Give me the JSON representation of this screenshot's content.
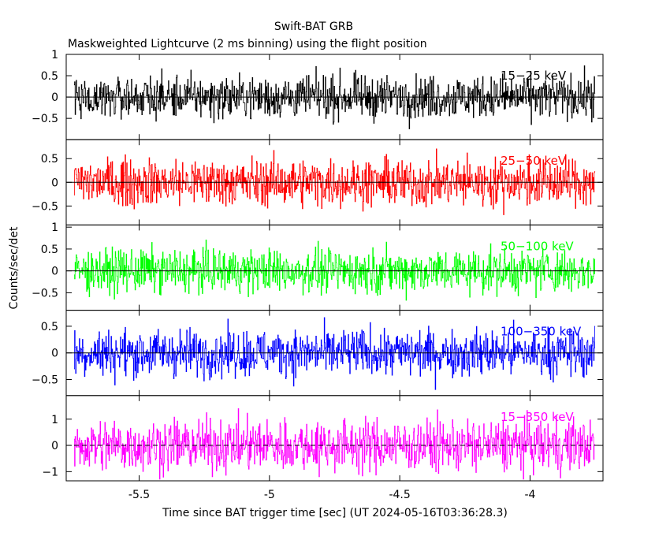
{
  "chart_data": {
    "type": "line",
    "title": "Swift-BAT GRB",
    "subtitle": "Maskweighted Lightcurve (2 ms binning) using the flight position",
    "xlabel": "Time since BAT trigger time [sec] (UT 2024-05-16T03:36:28.3)",
    "ylabel": "Counts/sec/det",
    "xlim": [
      -5.78,
      -3.72
    ],
    "data_x_range": [
      -5.75,
      -3.75
    ],
    "bin_width_s": 0.002,
    "x_ticks": [
      -5.5,
      -5,
      -4.5,
      -4
    ],
    "x_tick_labels": [
      "-5.5",
      "-5",
      "-4.5",
      "-4"
    ],
    "panels": [
      {
        "name": "15-25 keV",
        "label": "15−25 keV",
        "color": "#000000",
        "ylim": [
          -1.0,
          1.0
        ],
        "ticks": [
          -0.5,
          0,
          0.5,
          1
        ],
        "tick_labels": [
          "−0.5",
          "0",
          "0.5",
          "1"
        ],
        "amplitude": 0.85,
        "mean": 0.0
      },
      {
        "name": "25-50 keV",
        "label": "25−50 keV",
        "color": "#ff0000",
        "ylim": [
          -0.9,
          0.9
        ],
        "ticks": [
          -0.5,
          0,
          0.5
        ],
        "tick_labels": [
          "−0.5",
          "0",
          "0.5"
        ],
        "amplitude": 0.85,
        "mean": 0.0
      },
      {
        "name": "50-100 keV",
        "label": "50−100 keV",
        "color": "#00ff00",
        "ylim": [
          -0.9,
          1.05
        ],
        "ticks": [
          -0.5,
          0,
          0.5,
          1
        ],
        "tick_labels": [
          "−0.5",
          "0",
          "0.5",
          "1"
        ],
        "amplitude": 0.85,
        "mean": 0.0
      },
      {
        "name": "100-350 keV",
        "label": "100−350 keV",
        "color": "#0000ff",
        "ylim": [
          -0.8,
          0.8
        ],
        "ticks": [
          -0.5,
          0,
          0.5
        ],
        "tick_labels": [
          "−0.5",
          "0",
          "0.5"
        ],
        "amplitude": 0.75,
        "mean": 0.0
      },
      {
        "name": "15-350 keV",
        "label": "15−350 keV",
        "color": "#ff00ff",
        "ylim": [
          -1.35,
          1.9
        ],
        "ticks": [
          -1,
          0,
          1
        ],
        "tick_labels": [
          "−1",
          "0",
          "1"
        ],
        "amplitude": 1.7,
        "mean": 0.0
      }
    ]
  }
}
